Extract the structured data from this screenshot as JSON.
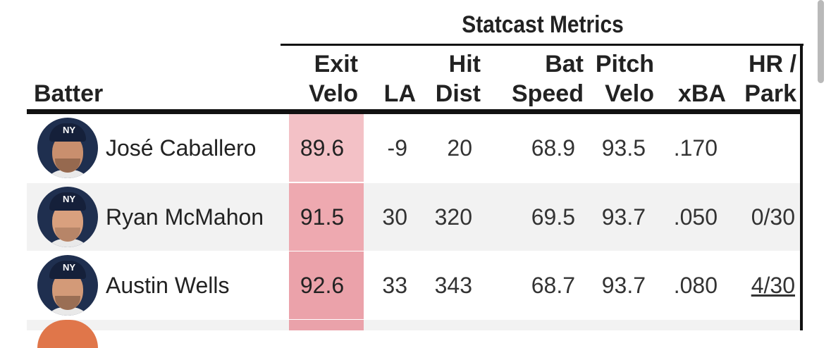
{
  "group_title": "Statcast Metrics",
  "headers": {
    "batter": "Batter",
    "exit_velo": [
      "Exit",
      "Velo"
    ],
    "la": "LA",
    "hit_dist": [
      "Hit",
      "Dist"
    ],
    "bat_speed": [
      "Bat",
      "Speed"
    ],
    "pitch_velo": [
      "Pitch",
      "Velo"
    ],
    "xba": "xBA",
    "hr_park": [
      "HR /",
      "Park"
    ]
  },
  "rows": [
    {
      "batter": "José Caballero",
      "exit_velo": "89.6",
      "la": "-9",
      "hit_dist": "20",
      "bat_speed": "68.9",
      "pitch_velo": "93.5",
      "xba": ".170",
      "hr_park": ""
    },
    {
      "batter": "Ryan McMahon",
      "exit_velo": "91.5",
      "la": "30",
      "hit_dist": "320",
      "bat_speed": "69.5",
      "pitch_velo": "93.7",
      "xba": ".050",
      "hr_park": "0/30"
    },
    {
      "batter": "Austin Wells",
      "exit_velo": "92.6",
      "la": "33",
      "hit_dist": "343",
      "bat_speed": "68.7",
      "pitch_velo": "93.7",
      "xba": ".080",
      "hr_park": "4/30"
    }
  ],
  "colors": {
    "heat_low": "#f3c1c6",
    "heat_mid": "#eea9b0",
    "heat_high": "#eba2aa",
    "team_logo_partial": "#e0764a"
  },
  "icons": {
    "avatar": "player-headshot",
    "team_logo": "NY"
  }
}
